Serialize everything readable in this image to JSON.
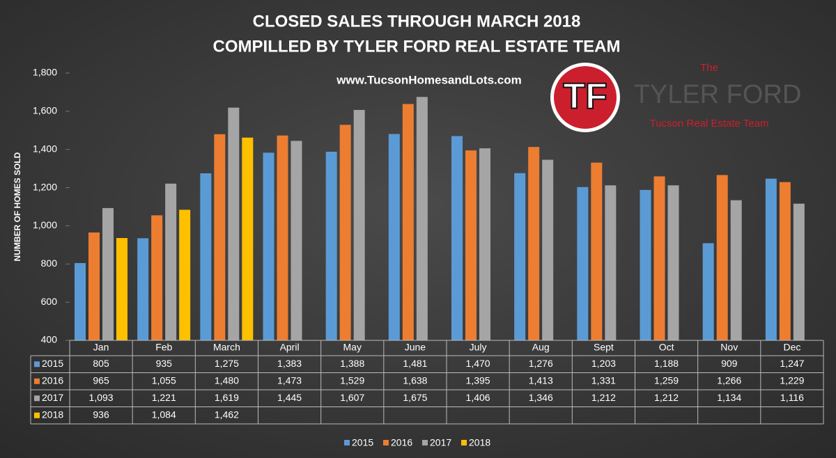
{
  "chart_data": {
    "type": "bar",
    "title": "CLOSED SALES THROUGH MARCH 2018",
    "subtitle": "COMPILLED BY TYLER FORD REAL ESTATE TEAM",
    "annotation": "www.TucsonHomesandLots.com",
    "y_label": "NUMBER OF HOMES SOLD",
    "categories": [
      "Jan",
      "Feb",
      "March",
      "April",
      "May",
      "June",
      "July",
      "Aug",
      "Sept",
      "Oct",
      "Nov",
      "Dec"
    ],
    "series": [
      {
        "name": "2015",
        "color": "#5b9bd5",
        "values": [
          805,
          935,
          1275,
          1383,
          1388,
          1481,
          1470,
          1276,
          1203,
          1188,
          909,
          1247
        ],
        "value_labels": [
          "805",
          "935",
          "1,275",
          "1,383",
          "1,388",
          "1,481",
          "1,470",
          "1,276",
          "1,203",
          "1,188",
          "909",
          "1,247"
        ]
      },
      {
        "name": "2016",
        "color": "#ed7d31",
        "values": [
          965,
          1055,
          1480,
          1473,
          1529,
          1638,
          1395,
          1413,
          1331,
          1259,
          1266,
          1229
        ],
        "value_labels": [
          "965",
          "1,055",
          "1,480",
          "1,473",
          "1,529",
          "1,638",
          "1,395",
          "1,413",
          "1,331",
          "1,259",
          "1,266",
          "1,229"
        ]
      },
      {
        "name": "2017",
        "color": "#a5a5a5",
        "values": [
          1093,
          1221,
          1619,
          1445,
          1607,
          1675,
          1406,
          1346,
          1212,
          1212,
          1134,
          1116
        ],
        "value_labels": [
          "1,093",
          "1,221",
          "1,619",
          "1,445",
          "1,607",
          "1,675",
          "1,406",
          "1,346",
          "1,212",
          "1,212",
          "1,134",
          "1,116"
        ]
      },
      {
        "name": "2018",
        "color": "#ffc000",
        "values": [
          936,
          1084,
          1462,
          null,
          null,
          null,
          null,
          null,
          null,
          null,
          null,
          null
        ],
        "value_labels": [
          "936",
          "1,084",
          "1,462",
          null,
          null,
          null,
          null,
          null,
          null,
          null,
          null,
          null
        ]
      }
    ],
    "ylim": [
      400,
      1800
    ],
    "yticks": [
      400,
      600,
      800,
      {
        "value": 1000,
        "label": "1,000"
      },
      {
        "value": 1200,
        "label": "1,200"
      },
      {
        "value": 1400,
        "label": "1,400"
      },
      {
        "value": 1600,
        "label": "1,600"
      },
      {
        "value": 1800,
        "label": "1,800"
      }
    ],
    "grid": false,
    "legend": "bottom"
  },
  "logo": {
    "initials": "TF",
    "line1": "The",
    "line2": "TYLER FORD",
    "line3": "Tucson Real Estate Team"
  }
}
